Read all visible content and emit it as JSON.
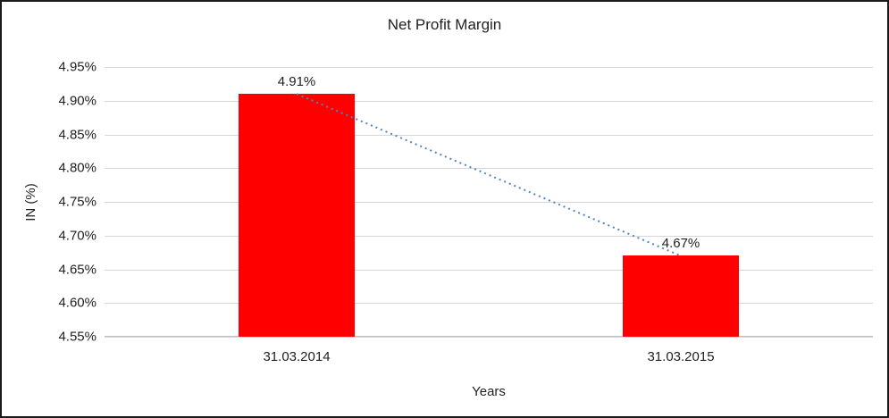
{
  "chart_data": {
    "type": "bar",
    "title": "Net Profit Margin",
    "xlabel": "Years",
    "ylabel": "IN (%)",
    "categories": [
      "31.03.2014",
      "31.03.2015"
    ],
    "values": [
      4.91,
      4.67
    ],
    "data_labels": [
      "4.91%",
      "4.67%"
    ],
    "ylim": [
      4.55,
      4.95
    ],
    "ytick_step": 0.05,
    "ytick_labels": [
      "4.95%",
      "4.90%",
      "4.85%",
      "4.80%",
      "4.75%",
      "4.70%",
      "4.65%",
      "4.60%",
      "4.55%"
    ],
    "bar_color": "#ff0000",
    "gridline_color": "#d6d6d6",
    "trendline_color": "#4f86c0",
    "trendline_style": "dotted",
    "legend_position": "none",
    "grid": "horizontal"
  }
}
